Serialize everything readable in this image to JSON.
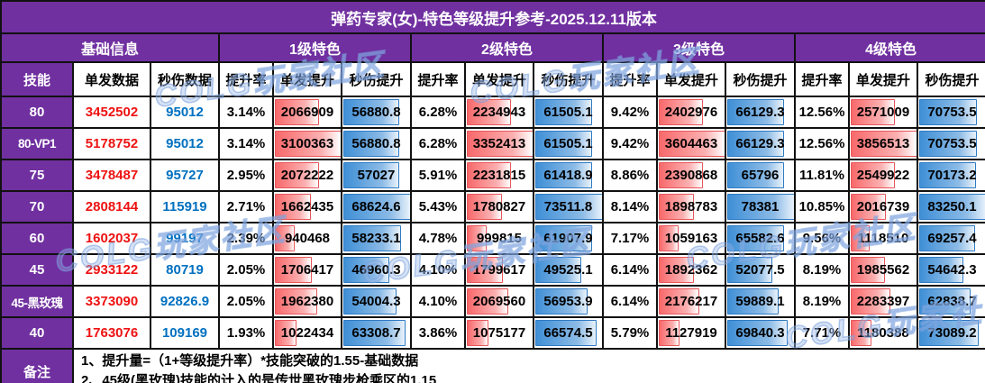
{
  "title": "弹药专家(女)-特色等级提升参考-2025.12.11版本",
  "header": {
    "groups": [
      {
        "label": "基础信息"
      },
      {
        "label": "1级特色"
      },
      {
        "label": "2级特色"
      },
      {
        "label": "3级特色"
      },
      {
        "label": "4级特色"
      }
    ],
    "columns": [
      "技能",
      "单发数据",
      "秒伤数据",
      "提升率",
      "单发提升",
      "秒伤提升",
      "提升率",
      "单发提升",
      "秒伤提升",
      "提升率",
      "单发提升",
      "秒伤提升",
      "提升率",
      "单发提升",
      "秒伤提升"
    ]
  },
  "rows": [
    {
      "skill": "80",
      "single": "3452502",
      "dps": "95012",
      "levels": [
        {
          "rate": "3.14%",
          "hit": "2066909",
          "dps": "56880.8"
        },
        {
          "rate": "6.28%",
          "hit": "2234943",
          "dps": "61505.1"
        },
        {
          "rate": "9.42%",
          "hit": "2402976",
          "dps": "66129.3"
        },
        {
          "rate": "12.56%",
          "hit": "2571009",
          "dps": "70753.5"
        }
      ]
    },
    {
      "skill": "80-VP1",
      "single": "5178752",
      "dps": "95012",
      "levels": [
        {
          "rate": "3.14%",
          "hit": "3100363",
          "dps": "56880.8"
        },
        {
          "rate": "6.28%",
          "hit": "3352413",
          "dps": "61505.1"
        },
        {
          "rate": "9.42%",
          "hit": "3604463",
          "dps": "66129.3"
        },
        {
          "rate": "12.56%",
          "hit": "3856513",
          "dps": "70753.5"
        }
      ]
    },
    {
      "skill": "75",
      "single": "3478487",
      "dps": "95727",
      "levels": [
        {
          "rate": "2.95%",
          "hit": "2072222",
          "dps": "57027"
        },
        {
          "rate": "5.91%",
          "hit": "2231815",
          "dps": "61418.9"
        },
        {
          "rate": "8.86%",
          "hit": "2390868",
          "dps": "65796"
        },
        {
          "rate": "11.81%",
          "hit": "2549922",
          "dps": "70173.2"
        }
      ]
    },
    {
      "skill": "70",
      "single": "2808144",
      "dps": "115919",
      "levels": [
        {
          "rate": "2.71%",
          "hit": "1662435",
          "dps": "68624.6"
        },
        {
          "rate": "5.43%",
          "hit": "1780827",
          "dps": "73511.8"
        },
        {
          "rate": "8.14%",
          "hit": "1898783",
          "dps": "78381"
        },
        {
          "rate": "10.85%",
          "hit": "2016739",
          "dps": "83250.1"
        }
      ]
    },
    {
      "skill": "60",
      "single": "1602037",
      "dps": "99197",
      "levels": [
        {
          "rate": "2.39%",
          "hit": "940468",
          "dps": "58233.1"
        },
        {
          "rate": "4.78%",
          "hit": "999815",
          "dps": "61907.9"
        },
        {
          "rate": "7.17%",
          "hit": "1059163",
          "dps": "65582.6"
        },
        {
          "rate": "9.56%",
          "hit": "1118510",
          "dps": "69257.4"
        }
      ]
    },
    {
      "skill": "45",
      "single": "2933122",
      "dps": "80719",
      "levels": [
        {
          "rate": "2.05%",
          "hit": "1706417",
          "dps": "46960.3"
        },
        {
          "rate": "4.10%",
          "hit": "1799617",
          "dps": "49525.1"
        },
        {
          "rate": "6.14%",
          "hit": "1892362",
          "dps": "52077.5"
        },
        {
          "rate": "8.19%",
          "hit": "1985562",
          "dps": "54642.3"
        }
      ]
    },
    {
      "skill": "45-黑玫瑰",
      "single": "3373090",
      "dps": "92826.9",
      "levels": [
        {
          "rate": "2.05%",
          "hit": "1962380",
          "dps": "54004.3"
        },
        {
          "rate": "4.10%",
          "hit": "2069560",
          "dps": "56953.9"
        },
        {
          "rate": "6.14%",
          "hit": "2176217",
          "dps": "59889.1"
        },
        {
          "rate": "8.19%",
          "hit": "2283397",
          "dps": "62838.7"
        }
      ]
    },
    {
      "skill": "40",
      "single": "1763076",
      "dps": "109169",
      "levels": [
        {
          "rate": "1.93%",
          "hit": "1022434",
          "dps": "63308.7"
        },
        {
          "rate": "3.86%",
          "hit": "1075177",
          "dps": "66574.5"
        },
        {
          "rate": "5.79%",
          "hit": "1127919",
          "dps": "69840.3"
        },
        {
          "rate": "7.71%",
          "hit": "1180388",
          "dps": "73089.2"
        }
      ]
    }
  ],
  "notes": {
    "label": "备注",
    "lines": [
      "1、提升量=（1+等级提升率）*技能突破的1.55-基础数据",
      "2、45级(黑玫瑰)技能的计入的是传世黑玫瑰步枪乘区的1.15"
    ]
  },
  "watermark": {
    "text": "COLG玩家社区"
  },
  "colors": {
    "header_purple": "#7030a0",
    "single_text_red": "#ee1111",
    "dps_text_blue": "#0070c0",
    "bar_red": "#f8696b",
    "bar_blue": "#3f8fd6"
  }
}
